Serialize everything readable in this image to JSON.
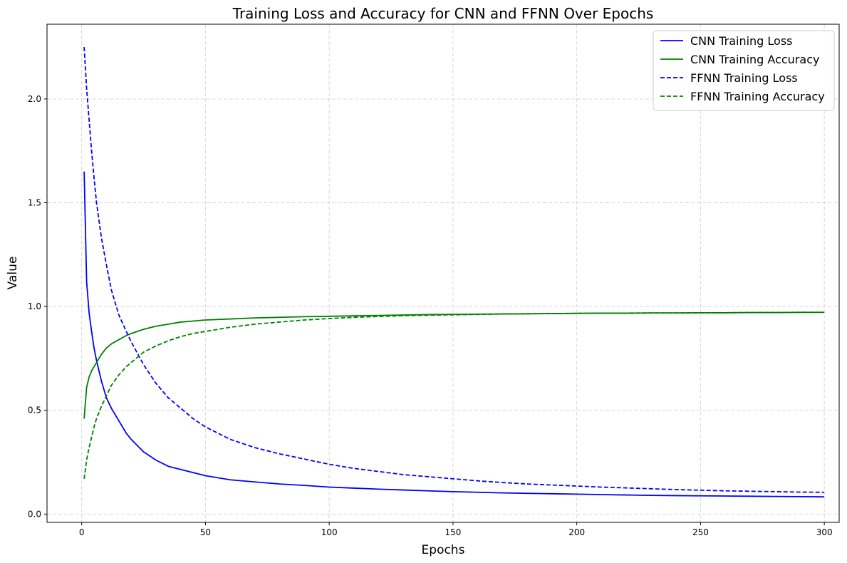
{
  "chart_data": {
    "type": "line",
    "title": "Training Loss and Accuracy for CNN and FFNN Over Epochs",
    "xlabel": "Epochs",
    "ylabel": "Value",
    "xlim": [
      -14,
      306
    ],
    "ylim": [
      -0.04,
      2.36
    ],
    "xticks": [
      0,
      50,
      100,
      150,
      200,
      250,
      300
    ],
    "yticks": [
      0.0,
      0.5,
      1.0,
      1.5,
      2.0
    ],
    "xtick_labels": [
      "0",
      "50",
      "100",
      "150",
      "200",
      "250",
      "300"
    ],
    "ytick_labels": [
      "0.0",
      "0.5",
      "1.0",
      "1.5",
      "2.0"
    ],
    "grid": true,
    "legend_position": "top-right",
    "series": [
      {
        "name": "CNN Training Loss",
        "color": "#0000ff",
        "linestyle": "solid",
        "x": [
          1,
          2,
          3,
          4,
          5,
          6,
          8,
          10,
          12,
          15,
          18,
          20,
          25,
          30,
          35,
          40,
          45,
          50,
          60,
          70,
          80,
          90,
          100,
          110,
          120,
          130,
          140,
          150,
          160,
          170,
          180,
          190,
          200,
          210,
          220,
          230,
          240,
          250,
          260,
          270,
          280,
          290,
          300
        ],
        "y": [
          1.65,
          1.12,
          0.97,
          0.88,
          0.8,
          0.74,
          0.64,
          0.56,
          0.51,
          0.45,
          0.39,
          0.36,
          0.3,
          0.26,
          0.23,
          0.215,
          0.2,
          0.185,
          0.165,
          0.155,
          0.145,
          0.138,
          0.13,
          0.125,
          0.12,
          0.116,
          0.112,
          0.108,
          0.105,
          0.102,
          0.1,
          0.098,
          0.096,
          0.094,
          0.092,
          0.09,
          0.089,
          0.088,
          0.087,
          0.086,
          0.085,
          0.084,
          0.083
        ]
      },
      {
        "name": "CNN Training Accuracy",
        "color": "#008000",
        "linestyle": "solid",
        "x": [
          1,
          2,
          3,
          4,
          5,
          6,
          8,
          10,
          12,
          15,
          18,
          20,
          25,
          30,
          35,
          40,
          45,
          50,
          60,
          70,
          80,
          90,
          100,
          110,
          120,
          130,
          140,
          150,
          160,
          170,
          180,
          190,
          200,
          210,
          220,
          230,
          240,
          250,
          260,
          270,
          280,
          290,
          300
        ],
        "y": [
          0.46,
          0.61,
          0.66,
          0.69,
          0.71,
          0.73,
          0.77,
          0.8,
          0.82,
          0.84,
          0.86,
          0.87,
          0.89,
          0.905,
          0.915,
          0.925,
          0.93,
          0.935,
          0.94,
          0.945,
          0.948,
          0.951,
          0.953,
          0.955,
          0.957,
          0.959,
          0.961,
          0.962,
          0.963,
          0.964,
          0.965,
          0.966,
          0.967,
          0.968,
          0.968,
          0.969,
          0.969,
          0.97,
          0.97,
          0.971,
          0.971,
          0.972,
          0.972
        ]
      },
      {
        "name": "FFNN Training Loss",
        "color": "#0000ff",
        "linestyle": "dashed",
        "x": [
          1,
          2,
          3,
          4,
          5,
          6,
          8,
          10,
          12,
          15,
          18,
          20,
          25,
          30,
          35,
          40,
          45,
          50,
          60,
          70,
          80,
          90,
          100,
          110,
          120,
          130,
          140,
          150,
          160,
          170,
          180,
          190,
          200,
          210,
          220,
          230,
          240,
          250,
          260,
          270,
          280,
          290,
          300
        ],
        "y": [
          2.25,
          2.05,
          1.9,
          1.75,
          1.62,
          1.5,
          1.33,
          1.2,
          1.08,
          0.96,
          0.88,
          0.83,
          0.72,
          0.63,
          0.56,
          0.51,
          0.46,
          0.42,
          0.36,
          0.32,
          0.29,
          0.265,
          0.24,
          0.22,
          0.205,
          0.19,
          0.18,
          0.17,
          0.16,
          0.152,
          0.145,
          0.14,
          0.135,
          0.13,
          0.126,
          0.122,
          0.118,
          0.115,
          0.112,
          0.11,
          0.108,
          0.106,
          0.105
        ]
      },
      {
        "name": "FFNN Training Accuracy",
        "color": "#008000",
        "linestyle": "dashed",
        "x": [
          1,
          2,
          3,
          4,
          5,
          6,
          8,
          10,
          12,
          15,
          18,
          20,
          25,
          30,
          35,
          40,
          45,
          50,
          60,
          70,
          80,
          90,
          100,
          110,
          120,
          130,
          140,
          150,
          160,
          170,
          180,
          190,
          200,
          210,
          220,
          230,
          240,
          250,
          260,
          270,
          280,
          290,
          300
        ],
        "y": [
          0.17,
          0.26,
          0.32,
          0.37,
          0.42,
          0.46,
          0.52,
          0.57,
          0.62,
          0.67,
          0.71,
          0.73,
          0.78,
          0.81,
          0.835,
          0.855,
          0.87,
          0.88,
          0.9,
          0.915,
          0.925,
          0.935,
          0.942,
          0.948,
          0.952,
          0.956,
          0.958,
          0.96,
          0.962,
          0.964,
          0.965,
          0.966,
          0.967,
          0.968,
          0.968,
          0.969,
          0.969,
          0.97,
          0.97,
          0.971,
          0.971,
          0.972,
          0.972
        ]
      }
    ]
  }
}
